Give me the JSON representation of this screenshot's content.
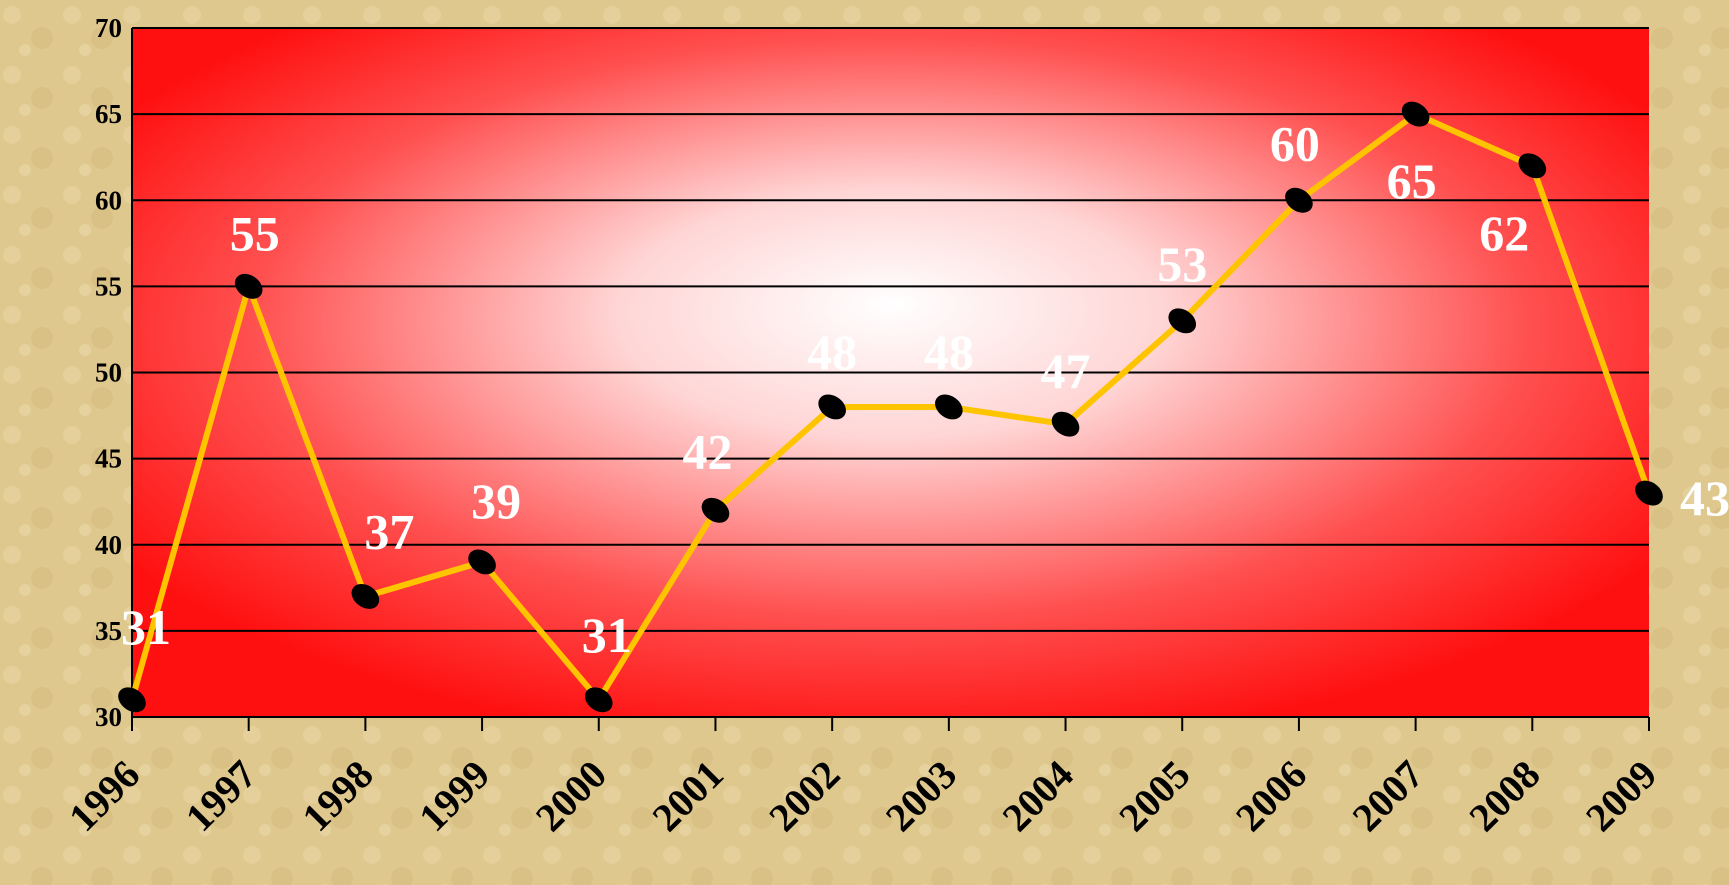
{
  "chart_data": {
    "type": "line",
    "categories": [
      "1996",
      "1997",
      "1998",
      "1999",
      "2000",
      "2001",
      "2002",
      "2003",
      "2004",
      "2005",
      "2006",
      "2007",
      "2008",
      "2009"
    ],
    "series": [
      {
        "color": "#ffc400",
        "values": [
          31,
          55,
          37,
          39,
          31,
          42,
          48,
          48,
          47,
          53,
          60,
          65,
          62,
          43
        ]
      }
    ],
    "ylim": [
      30,
      70
    ],
    "yticks": [
      30,
      35,
      40,
      45,
      50,
      55,
      60,
      65,
      70
    ],
    "grid": true
  }
}
